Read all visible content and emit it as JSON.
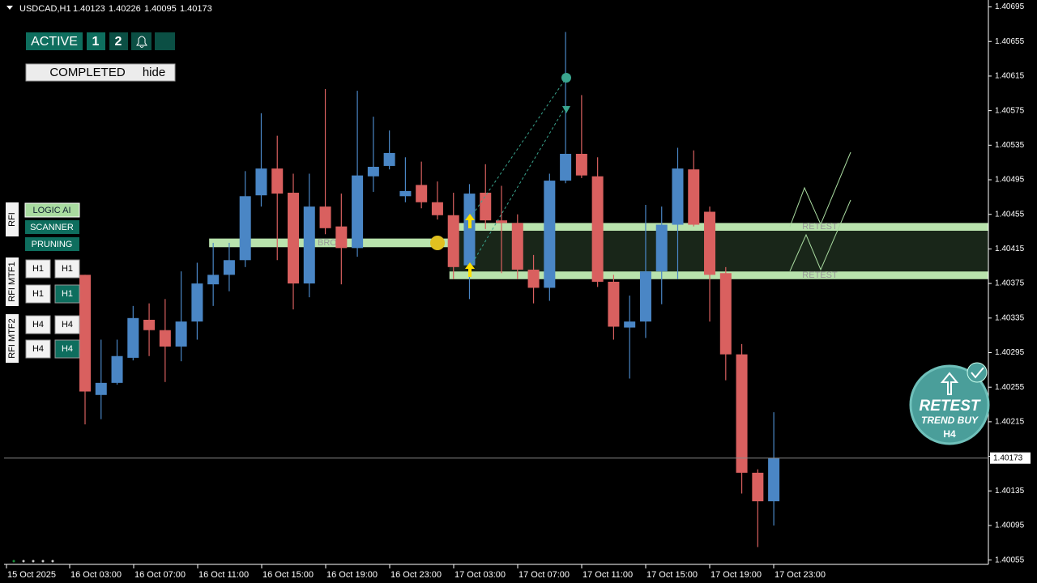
{
  "chart_data": {
    "type": "candlestick",
    "symbol": "USDCAD,H1",
    "up_color": "#4a86c5",
    "down_color": "#d9605f",
    "ylim": [
      1.4005,
      1.40703
    ],
    "yticks": [
      1.40695,
      1.40655,
      1.40615,
      1.40575,
      1.40535,
      1.40495,
      1.40455,
      1.40415,
      1.40375,
      1.40335,
      1.40295,
      1.40255,
      1.40215,
      1.40175,
      1.40135,
      1.40095,
      1.40055
    ],
    "xtick_labels": [
      "15 Oct 2025",
      "16 Oct 03:00",
      "16 Oct 07:00",
      "16 Oct 11:00",
      "16 Oct 15:00",
      "16 Oct 19:00",
      "16 Oct 23:00",
      "17 Oct 03:00",
      "17 Oct 07:00",
      "17 Oct 11:00",
      "17 Oct 15:00",
      "17 Oct 19:00",
      "17 Oct 23:00"
    ],
    "open": [
      1.40385,
      1.40246,
      1.4026,
      1.40289,
      1.40333,
      1.40321,
      1.40302,
      1.40331,
      1.40374,
      1.40385,
      1.40402,
      1.40477,
      1.40508,
      1.4048,
      1.40375,
      1.40464,
      1.40441,
      1.40416,
      1.40499,
      1.40511,
      1.40476,
      1.40489,
      1.40469,
      1.40454,
      1.40396,
      1.4048,
      1.40448,
      1.40445,
      1.40391,
      1.4037,
      1.40494,
      1.40525,
      1.40499,
      1.40377,
      1.40324,
      1.40331,
      1.40389,
      1.40443,
      1.40507,
      1.40458,
      1.40387,
      1.40293,
      1.40156,
      1.40123
    ],
    "high": [
      1.40385,
      1.4031,
      1.4031,
      1.40349,
      1.40352,
      1.40357,
      1.40389,
      1.40399,
      1.40422,
      1.40422,
      1.40505,
      1.40572,
      1.40546,
      1.40502,
      1.40502,
      1.406,
      1.40479,
      1.40598,
      1.40568,
      1.40552,
      1.40521,
      1.40516,
      1.40493,
      1.4048,
      1.4049,
      1.40513,
      1.40488,
      1.40455,
      1.40408,
      1.40502,
      1.40666,
      1.40593,
      1.40521,
      1.40385,
      1.40361,
      1.40466,
      1.40464,
      1.40532,
      1.40529,
      1.40464,
      1.40394,
      1.40305,
      1.4016,
      1.40226
    ],
    "low": [
      1.40212,
      1.40218,
      1.40258,
      1.40286,
      1.40291,
      1.40261,
      1.40285,
      1.4031,
      1.40349,
      1.40366,
      1.40394,
      1.40464,
      1.40402,
      1.40345,
      1.40359,
      1.40432,
      1.40374,
      1.40406,
      1.40481,
      1.40507,
      1.40469,
      1.40462,
      1.40449,
      1.4038,
      1.40357,
      1.40438,
      1.40387,
      1.4038,
      1.40352,
      1.40355,
      1.40491,
      1.40497,
      1.40371,
      1.4031,
      1.40265,
      1.40312,
      1.40351,
      1.4038,
      1.40441,
      1.40331,
      1.40263,
      1.40132,
      1.4007,
      1.40095
    ],
    "close": [
      1.4025,
      1.4026,
      1.40291,
      1.40335,
      1.40321,
      1.40302,
      1.40331,
      1.40375,
      1.40385,
      1.40402,
      1.40476,
      1.40508,
      1.40479,
      1.40375,
      1.40464,
      1.40439,
      1.40416,
      1.405,
      1.4051,
      1.40526,
      1.40482,
      1.40469,
      1.40454,
      1.40394,
      1.40479,
      1.40448,
      1.40445,
      1.40391,
      1.4037,
      1.40494,
      1.40525,
      1.405,
      1.40377,
      1.40325,
      1.40331,
      1.40389,
      1.40443,
      1.40508,
      1.40443,
      1.40385,
      1.40293,
      1.40156,
      1.40123,
      1.40173
    ],
    "zones": [
      {
        "label": "BRO",
        "low": 1.40417,
        "high": 1.40427,
        "start": 8,
        "end": 23
      },
      {
        "label": "RETEST",
        "low": 1.40436,
        "high": 1.40445,
        "start": 23,
        "end": 43
      },
      {
        "label": "RETEST",
        "low": 1.4038,
        "high": 1.40389,
        "start": 23,
        "end": 43
      }
    ]
  },
  "ui": {
    "active": "ACTIVE",
    "tab1": "1",
    "tab2": "2",
    "completed": "COMPLETED",
    "hide": "hide",
    "side_buttons": [
      "LOGIC AI",
      "SCANNER",
      "PRUNING"
    ],
    "side_labels": [
      "RFI",
      "RFI MTF1",
      "RFI MTF2"
    ],
    "mtf_buttons": [
      [
        "H1",
        "H1"
      ],
      [
        "H1",
        "H1"
      ],
      [
        "H4",
        "H4"
      ],
      [
        "H4",
        "H4"
      ]
    ],
    "badge": {
      "title": "RETEST",
      "subtitle": "TREND BUY",
      "timeframe": "H4"
    }
  }
}
